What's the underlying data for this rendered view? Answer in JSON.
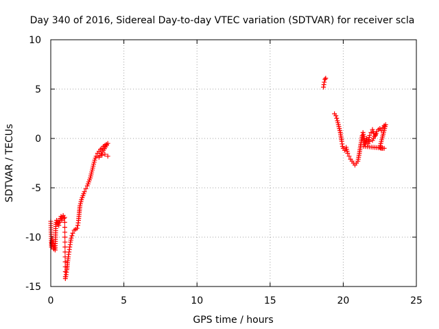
{
  "chart_data": {
    "type": "scatter",
    "title": "Day 340 of 2016, Sidereal Day-to-day VTEC variation (SDTVAR) for receiver scla",
    "xlabel": "GPS time / hours",
    "ylabel": "SDTVAR / TECUs",
    "xlim": [
      0,
      25
    ],
    "ylim": [
      -15,
      10
    ],
    "x_ticks": [
      0,
      5,
      10,
      15,
      20,
      25
    ],
    "y_ticks": [
      -15,
      -10,
      -5,
      0,
      5,
      10
    ],
    "x_tick_labels": [
      "0",
      "5",
      "10",
      "15",
      "20",
      "25"
    ],
    "y_tick_labels": [
      "-15",
      "-10",
      "-5",
      "0",
      "5",
      "10"
    ],
    "grid": true,
    "marker": "plus",
    "series_color": "#ff0000",
    "segments": [
      {
        "points": [
          [
            0.0,
            -8.4
          ],
          [
            0.05,
            -11.0
          ],
          [
            0.1,
            -10.3
          ],
          [
            0.15,
            -10.6
          ],
          [
            0.2,
            -11.2
          ],
          [
            0.25,
            -10.9
          ],
          [
            0.3,
            -11.3
          ],
          [
            0.35,
            -8.7
          ],
          [
            0.4,
            -8.3
          ],
          [
            0.45,
            -8.6
          ],
          [
            0.5,
            -8.4
          ],
          [
            0.55,
            -8.8
          ],
          [
            0.6,
            -8.5
          ],
          [
            0.65,
            -8.1
          ],
          [
            0.7,
            -7.9
          ],
          [
            0.75,
            -8.3
          ],
          [
            0.8,
            -8.0
          ],
          [
            0.85,
            -7.8
          ],
          [
            0.9,
            -8.1
          ],
          [
            0.95,
            -8.0
          ],
          [
            1.0,
            -14.0
          ]
        ]
      },
      {
        "points": [
          [
            1.0,
            -14.2
          ],
          [
            1.05,
            -13.8
          ],
          [
            1.1,
            -13.3
          ],
          [
            1.15,
            -12.6
          ],
          [
            1.2,
            -12.0
          ],
          [
            1.25,
            -11.5
          ],
          [
            1.3,
            -11.0
          ],
          [
            1.35,
            -10.5
          ],
          [
            1.4,
            -10.1
          ],
          [
            1.5,
            -9.6
          ],
          [
            1.6,
            -9.3
          ],
          [
            1.7,
            -9.2
          ],
          [
            1.8,
            -9.1
          ],
          [
            1.85,
            -8.8
          ],
          [
            1.9,
            -8.3
          ],
          [
            1.95,
            -7.5
          ],
          [
            2.0,
            -6.8
          ],
          [
            2.1,
            -6.2
          ],
          [
            2.2,
            -5.8
          ],
          [
            2.3,
            -5.4
          ],
          [
            2.4,
            -5.1
          ],
          [
            2.5,
            -4.8
          ],
          [
            2.6,
            -4.4
          ],
          [
            2.7,
            -4.0
          ],
          [
            2.8,
            -3.4
          ],
          [
            2.9,
            -2.8
          ],
          [
            3.0,
            -2.2
          ],
          [
            3.1,
            -1.8
          ],
          [
            3.2,
            -1.5
          ],
          [
            3.3,
            -1.3
          ],
          [
            3.4,
            -1.1
          ],
          [
            3.5,
            -1.0
          ],
          [
            3.6,
            -0.8
          ],
          [
            3.7,
            -0.7
          ],
          [
            3.8,
            -0.6
          ],
          [
            3.9,
            -0.5
          ],
          [
            3.3,
            -1.9
          ],
          [
            3.5,
            -1.7
          ],
          [
            3.7,
            -1.6
          ],
          [
            3.9,
            -1.8
          ]
        ]
      },
      {
        "points": [
          [
            18.65,
            5.2
          ],
          [
            18.7,
            5.7
          ],
          [
            18.75,
            6.0
          ],
          [
            18.8,
            6.1
          ]
        ]
      },
      {
        "points": [
          [
            19.4,
            2.5
          ],
          [
            19.5,
            2.3
          ],
          [
            19.6,
            1.8
          ],
          [
            19.7,
            1.2
          ],
          [
            19.8,
            0.6
          ],
          [
            19.9,
            -0.3
          ],
          [
            19.95,
            -0.8
          ],
          [
            20.0,
            -1.0
          ],
          [
            20.1,
            -1.2
          ],
          [
            20.2,
            -0.9
          ],
          [
            20.3,
            -1.5
          ],
          [
            20.4,
            -1.8
          ],
          [
            20.5,
            -2.1
          ],
          [
            20.6,
            -2.3
          ],
          [
            20.7,
            -2.5
          ],
          [
            20.8,
            -2.7
          ],
          [
            20.9,
            -2.5
          ],
          [
            21.0,
            -2.3
          ],
          [
            21.1,
            -1.5
          ],
          [
            21.2,
            -0.6
          ],
          [
            21.3,
            0.3
          ],
          [
            21.35,
            0.6
          ],
          [
            21.4,
            0.2
          ],
          [
            21.5,
            -0.5
          ],
          [
            21.6,
            -0.2
          ],
          [
            21.7,
            -0.5
          ],
          [
            21.8,
            0.3
          ],
          [
            21.9,
            0.6
          ],
          [
            22.0,
            0.9
          ],
          [
            22.1,
            0.5
          ],
          [
            22.2,
            0.3
          ],
          [
            22.3,
            0.7
          ],
          [
            22.4,
            0.9
          ],
          [
            22.5,
            1.0
          ],
          [
            22.6,
            0.8
          ],
          [
            22.7,
            1.1
          ],
          [
            22.8,
            1.3
          ],
          [
            22.9,
            1.4
          ],
          [
            22.5,
            -0.9
          ],
          [
            22.6,
            -1.0
          ],
          [
            22.7,
            -1.0
          ],
          [
            22.8,
            -1.0
          ],
          [
            21.4,
            -0.8
          ],
          [
            21.6,
            0.0
          ],
          [
            21.8,
            -0.3
          ],
          [
            22.0,
            -0.2
          ],
          [
            22.2,
            0.4
          ]
        ]
      }
    ]
  }
}
